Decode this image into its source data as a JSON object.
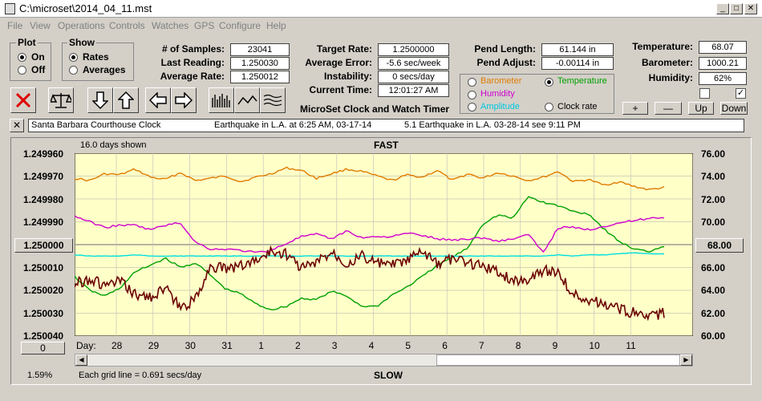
{
  "window": {
    "title": "C:\\microset\\2014_04_11.mst"
  },
  "menu": [
    "File",
    "View",
    "Operations",
    "Controls",
    "Watches",
    "GPS",
    "Configure",
    "Help"
  ],
  "plot_group": {
    "title": "Plot",
    "on": "On",
    "off": "Off",
    "selected": "On"
  },
  "show_group": {
    "title": "Show",
    "rates": "Rates",
    "averages": "Averages",
    "selected": "Rates"
  },
  "stats": {
    "samples_label": "# of Samples:",
    "samples": "23041",
    "last_label": "Last Reading:",
    "last": "1.250030",
    "avg_label": "Average Rate:",
    "avg": "1.250012"
  },
  "rates": {
    "target_label": "Target Rate:",
    "target": "1.2500000",
    "error_label": "Average Error:",
    "error": "-5.6 sec/week",
    "instab_label": "Instability:",
    "instab": "0 secs/day",
    "time_label": "Current Time:",
    "time": "12:01:27 AM"
  },
  "pend": {
    "length_label": "Pend Length:",
    "length": "61.144 in",
    "adjust_label": "Pend Adjust:",
    "adjust": "-0.00114 in"
  },
  "env": {
    "temp_label": "Temperature:",
    "temp": "68.07",
    "baro_label": "Barometer:",
    "baro": "1000.21",
    "hum_label": "Humidity:",
    "hum": "62%"
  },
  "series_select": {
    "barometer": "Barometer",
    "temperature": "Temperature",
    "humidity": "Humidity",
    "amplitude": "Amplitude",
    "clock_rate": "Clock rate",
    "selected": "Temperature"
  },
  "app_title": "MicroSet Clock and Watch Timer",
  "nav_buttons": {
    "plus": "+",
    "minus": "—",
    "up": "Up",
    "down": "Down"
  },
  "notes": {
    "clock": "Santa Barbara Courthouse Clock",
    "note1": "Earthquake in L.A. at 6:25 AM, 03-17-14",
    "note2": "5.1 Earthquake in L.A. 03-28-14  see 9:11 PM",
    "close": "✕"
  },
  "chart_header": {
    "days_shown": "16.0 days shown",
    "top": "FAST",
    "bottom": "SLOW",
    "grid_note": "Each grid line = 0.691 secs/day",
    "percent": "1.59%",
    "left_btn": "0"
  },
  "colors": {
    "barometer": "#e07b00",
    "temperature": "#00a000",
    "humidity": "#d000d0",
    "amplitude": "#00dede",
    "rate": "#6b0000",
    "plot_bg": "#ffffc8"
  },
  "chart_data": {
    "type": "line",
    "x_label": "Day:",
    "x_ticks": [
      "28",
      "29",
      "30",
      "31",
      "1",
      "2",
      "3",
      "4",
      "5",
      "6",
      "7",
      "8",
      "9",
      "10",
      "11"
    ],
    "left_axis": {
      "ticks": [
        "1.249960",
        "1.249970",
        "1.249980",
        "1.249990",
        "1.250000",
        "1.250010",
        "1.250020",
        "1.250030",
        "1.250040"
      ],
      "range": [
        1.24996,
        1.25004
      ],
      "reference": "1.250000"
    },
    "right_axis": {
      "ticks": [
        "76.00",
        "74.00",
        "72.00",
        "70.00",
        "68.00",
        "66.00",
        "64.00",
        "62.00",
        "60.00"
      ],
      "range": [
        60,
        76
      ],
      "reference": "68.00"
    },
    "series": [
      {
        "name": "Barometer",
        "axis": "right",
        "color": "#e07b00",
        "y": [
          73.8,
          73.6,
          74.2,
          74.1,
          74.6,
          73.9,
          73.7,
          74.3,
          73.6,
          73.8,
          74.0,
          73.5,
          73.9,
          74.2,
          74.7,
          74.5,
          73.8,
          74.2,
          74.6,
          74.4,
          74.0,
          73.6,
          74.1,
          73.9,
          74.5,
          73.6,
          74.2,
          73.8,
          74.3,
          74.0,
          73.6,
          73.9,
          74.4,
          73.5,
          73.7,
          73.2,
          73.5,
          73.1,
          72.8,
          73.0
        ]
      },
      {
        "name": "Temperature",
        "axis": "right",
        "color": "#00a000",
        "y": [
          65.2,
          64.0,
          63.5,
          64.2,
          65.6,
          66.2,
          66.8,
          66.0,
          66.4,
          65.3,
          64.1,
          63.7,
          62.8,
          62.3,
          62.6,
          63.3,
          63.2,
          63.9,
          63.5,
          62.6,
          62.6,
          63.6,
          64.3,
          65.2,
          66.2,
          66.9,
          67.7,
          69.8,
          70.6,
          70.3,
          72.2,
          71.7,
          71.4,
          70.9,
          70.7,
          69.4,
          68.3,
          67.6,
          67.4,
          67.9
        ]
      },
      {
        "name": "Humidity",
        "axis": "right",
        "color": "#d000d0",
        "y": [
          70.5,
          70.0,
          69.5,
          69.7,
          69.7,
          69.3,
          69.7,
          69.9,
          68.2,
          67.6,
          67.6,
          67.5,
          67.3,
          67.5,
          68.1,
          68.7,
          68.9,
          68.5,
          69.2,
          68.6,
          68.7,
          68.7,
          69.0,
          68.8,
          68.5,
          68.4,
          68.5,
          68.6,
          68.3,
          68.5,
          68.9,
          67.3,
          69.5,
          69.5,
          69.3,
          69.6,
          69.9,
          70.1,
          70.3,
          70.4
        ]
      },
      {
        "name": "Amplitude",
        "axis": "right",
        "color": "#00dede",
        "y": [
          67.1,
          67.0,
          67.0,
          67.0,
          67.1,
          67.0,
          67.0,
          67.0,
          67.0,
          67.0,
          67.0,
          67.0,
          67.0,
          67.0,
          67.0,
          67.0,
          67.0,
          67.0,
          67.0,
          67.0,
          67.0,
          67.0,
          67.0,
          67.0,
          67.0,
          67.0,
          67.0,
          67.0,
          67.0,
          67.0,
          67.0,
          67.0,
          67.1,
          67.0,
          67.1,
          67.1,
          67.2,
          67.3,
          67.2,
          67.2
        ]
      },
      {
        "name": "Clock rate",
        "axis": "left",
        "color": "#6b0000",
        "y": [
          1.250017,
          1.250015,
          1.250018,
          1.250016,
          1.250022,
          1.250023,
          1.250019,
          1.250028,
          1.250024,
          1.250009,
          1.250011,
          1.250009,
          1.250007,
          1.250003,
          1.250004,
          1.25001,
          1.250008,
          1.250003,
          1.250008,
          1.250005,
          1.250008,
          1.250009,
          1.250007,
          1.250003,
          1.250009,
          1.250006,
          1.250008,
          1.250009,
          1.250012,
          1.250016,
          1.250015,
          1.250011,
          1.250012,
          1.250022,
          1.250024,
          1.250026,
          1.250028,
          1.25003,
          1.250032,
          1.25003
        ]
      }
    ]
  }
}
